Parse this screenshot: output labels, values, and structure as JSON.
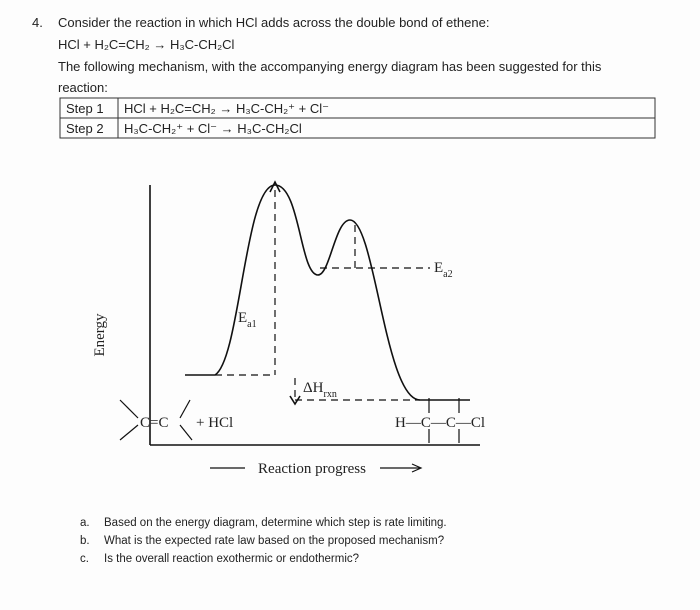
{
  "question": {
    "number": "4.",
    "lines": [
      "Consider the reaction in which HCl adds across the double bond of ethene:",
      "HCl + H₂C=CH₂ → H₃C-CH₂Cl",
      "The following mechanism, with the accompanying energy diagram has been suggested for this",
      "reaction:"
    ],
    "table": {
      "rows": [
        [
          "Step 1",
          "HCl + H₂C=CH₂ → H₃C-CH₂⁺ + Cl⁻"
        ],
        [
          "Step 2",
          "H₃C-CH₂⁺ + Cl⁻ → H₃C-CH₂Cl"
        ]
      ]
    },
    "diagram": {
      "y_label": "Energy",
      "x_label": "Reaction progress",
      "ea1": {
        "main": "E",
        "sub": "a1"
      },
      "ea2": {
        "main": "E",
        "sub": "a2"
      },
      "dh": {
        "main": "ΔH",
        "sub": "rxn"
      },
      "reactant": "C=C",
      "reactant_add": "+ HCl",
      "product": "H—C—C—Cl"
    },
    "parts": [
      {
        "letter": "a.",
        "text": "Based on the energy diagram, determine which step is rate limiting."
      },
      {
        "letter": "b.",
        "text": "What is the expected rate law based on the proposed mechanism?"
      },
      {
        "letter": "c.",
        "text": "Is the overall reaction exothermic or endothermic?"
      }
    ]
  }
}
